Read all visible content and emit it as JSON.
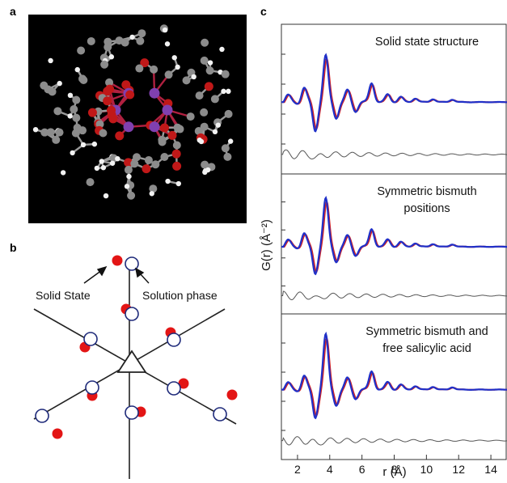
{
  "panels": {
    "a": {
      "label": "a"
    },
    "b": {
      "label": "b",
      "solid_state_label": "Solid State",
      "solution_phase_label": "Solution phase"
    },
    "c": {
      "label": "c"
    }
  },
  "colors": {
    "experiment": "#d62020",
    "fit": "#2030c8",
    "difference": "#555555",
    "atom_bi": "#8040b0",
    "atom_o": "#c01818",
    "atom_c": "#8c8c8c",
    "atom_h": "#f2f2f2"
  },
  "chart_data": {
    "type": "line",
    "xlabel": "r (Å)",
    "ylabel": "G(r) (Å⁻²)",
    "xlim": [
      1,
      15
    ],
    "xticks": [
      2,
      4,
      6,
      8,
      10,
      12,
      14
    ],
    "panels": [
      {
        "title_lines": [
          "Solid state structure"
        ]
      },
      {
        "title_lines": [
          "Symmetric bismuth",
          "positions"
        ]
      },
      {
        "title_lines": [
          "Symmetric bismuth and",
          "free salicylic acid"
        ]
      }
    ]
  }
}
